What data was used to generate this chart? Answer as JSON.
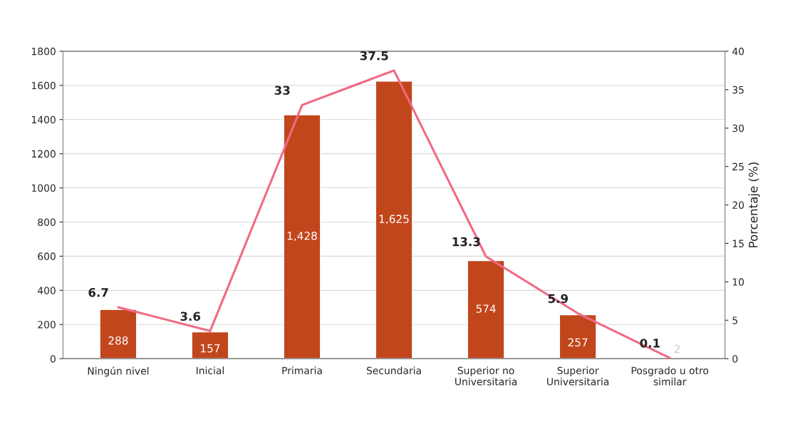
{
  "chart_data": {
    "type": "bar",
    "categories": [
      "Ningún nivel",
      "Inicial",
      "Primaria",
      "Secundaria",
      "Superior no\nUniversitaria",
      "Superior\nUniversitaria",
      "Posgrado u otro\nsimilar"
    ],
    "series": [
      {
        "color": "#c2461c",
        "values": [
          288,
          157,
          1428,
          1625,
          574,
          257,
          2
        ],
        "value_labels": [
          "288",
          "157",
          "1,428",
          "1,625",
          "574",
          "257",
          "2"
        ]
      },
      {
        "type": "line",
        "axis": "y2",
        "color": "#f06a84",
        "values": [
          6.7,
          3.6,
          33,
          37.5,
          13.3,
          5.9,
          0.1
        ],
        "value_labels": [
          "6.7",
          "3.6",
          "33",
          "37.5",
          "13.3",
          "5.9",
          "0.1"
        ]
      }
    ],
    "ylim": [
      0,
      1800
    ],
    "yticks": [
      0,
      200,
      400,
      600,
      800,
      1000,
      1200,
      1400,
      1600,
      1800
    ],
    "y2lim": [
      0,
      40
    ],
    "y2ticks": [
      0,
      5,
      10,
      15,
      20,
      25,
      30,
      35,
      40
    ],
    "y2label": "Porcentaje (%)",
    "grid": "y",
    "marker": "none"
  }
}
